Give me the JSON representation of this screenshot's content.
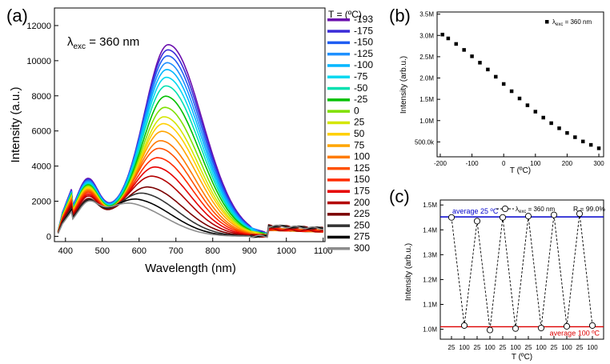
{
  "chart_data": [
    {
      "panel_label": "(a)",
      "type": "line",
      "title": "",
      "xlabel": "Wavelength (nm)",
      "ylabel": "Intensity (a.u.)",
      "xlim": [
        370,
        1105
      ],
      "ylim": [
        -300,
        13000
      ],
      "x_ticks": [
        400,
        500,
        600,
        700,
        800,
        900,
        1000,
        1100
      ],
      "y_ticks": [
        0,
        2000,
        4000,
        6000,
        8000,
        10000,
        12000
      ],
      "annotation_prefix": "λ",
      "annotation_sub": "exc",
      "annotation_suffix": " = 360 nm",
      "legend_title": "T = (ºC)",
      "series": [
        {
          "name": "-193",
          "color": "#6a0dad",
          "peak_x": 680,
          "peak_y": 11100,
          "shoulder_y": 3050
        },
        {
          "name": "-175",
          "color": "#3a2bd8",
          "peak_x": 679,
          "peak_y": 10800,
          "shoulder_y": 3000
        },
        {
          "name": "-150",
          "color": "#1f5df2",
          "peak_x": 678,
          "peak_y": 10450,
          "shoulder_y": 2950
        },
        {
          "name": "-125",
          "color": "#1e90ff",
          "peak_x": 677,
          "peak_y": 10050,
          "shoulder_y": 2900
        },
        {
          "name": "-100",
          "color": "#00b6ff",
          "peak_x": 676,
          "peak_y": 9650,
          "shoulder_y": 2850
        },
        {
          "name": "-75",
          "color": "#00d8f0",
          "peak_x": 675,
          "peak_y": 9200,
          "shoulder_y": 2800
        },
        {
          "name": "-50",
          "color": "#00e0b0",
          "peak_x": 674,
          "peak_y": 8700,
          "shoulder_y": 2750
        },
        {
          "name": "-25",
          "color": "#00c000",
          "peak_x": 673,
          "peak_y": 8100,
          "shoulder_y": 2700
        },
        {
          "name": "0",
          "color": "#7fe000",
          "peak_x": 671,
          "peak_y": 7450,
          "shoulder_y": 2650
        },
        {
          "name": "25",
          "color": "#d4e600",
          "peak_x": 669,
          "peak_y": 6900,
          "shoulder_y": 2580
        },
        {
          "name": "50",
          "color": "#ffd000",
          "peak_x": 667,
          "peak_y": 6500,
          "shoulder_y": 2520
        },
        {
          "name": "75",
          "color": "#ffa500",
          "peak_x": 664,
          "peak_y": 6050,
          "shoulder_y": 2460
        },
        {
          "name": "100",
          "color": "#ff7a00",
          "peak_x": 660,
          "peak_y": 5500,
          "shoulder_y": 2400
        },
        {
          "name": "125",
          "color": "#ff5000",
          "peak_x": 656,
          "peak_y": 5050,
          "shoulder_y": 2330
        },
        {
          "name": "150",
          "color": "#ff2a00",
          "peak_x": 652,
          "peak_y": 4500,
          "shoulder_y": 2250
        },
        {
          "name": "175",
          "color": "#e60000",
          "peak_x": 646,
          "peak_y": 3950,
          "shoulder_y": 2150
        },
        {
          "name": "200",
          "color": "#b30000",
          "peak_x": 638,
          "peak_y": 3400,
          "shoulder_y": 2050
        },
        {
          "name": "225",
          "color": "#7a0000",
          "peak_x": 628,
          "peak_y": 2750,
          "shoulder_y": 1900
        },
        {
          "name": "250",
          "color": "#333333",
          "peak_x": 614,
          "peak_y": 2350,
          "shoulder_y": 1800
        },
        {
          "name": "275",
          "color": "#000000",
          "peak_x": 600,
          "peak_y": 1950,
          "shoulder_y": 1700
        },
        {
          "name": "300",
          "color": "#8c8c8c",
          "peak_x": 585,
          "peak_y": 1650,
          "shoulder_y": 1600
        }
      ]
    },
    {
      "panel_label": "(b)",
      "type": "scatter",
      "title": "",
      "xlabel": "T (ºC)",
      "ylabel": "Intensity (arb.u.)",
      "xlim": [
        -210,
        315
      ],
      "ylim": [
        150000,
        3550000
      ],
      "x_ticks": [
        "-200",
        "-100",
        "0",
        "100",
        "200",
        "300"
      ],
      "x_tick_values": [
        -200,
        -100,
        0,
        100,
        200,
        300
      ],
      "y_ticks": [
        "500.0k",
        "1.0M",
        "1.5M",
        "2.0M",
        "2.5M",
        "3.0M",
        "3.5M"
      ],
      "y_tick_values": [
        500000,
        1000000,
        1500000,
        2000000,
        2500000,
        3000000,
        3500000
      ],
      "legend_prefix": "λ",
      "legend_sub": "exc",
      "legend_suffix": " = 360 nm",
      "x": [
        -193,
        -175,
        -150,
        -125,
        -100,
        -75,
        -50,
        -25,
        0,
        25,
        50,
        75,
        100,
        125,
        150,
        175,
        200,
        225,
        250,
        275,
        300
      ],
      "y": [
        3020000,
        2930000,
        2800000,
        2660000,
        2510000,
        2360000,
        2200000,
        2030000,
        1860000,
        1690000,
        1520000,
        1360000,
        1210000,
        1070000,
        940000,
        820000,
        710000,
        610000,
        510000,
        430000,
        350000
      ]
    },
    {
      "panel_label": "(c)",
      "type": "line",
      "title": "",
      "xlabel": "T (ºC)",
      "ylabel": "Intensity (arb.u.)",
      "ylim": [
        0.96,
        1.52
      ],
      "y_ticks": [
        "1.0M",
        "1.1M",
        "1.2M",
        "1.3M",
        "1.4M",
        "1.5M"
      ],
      "y_tick_values": [
        1.0,
        1.1,
        1.2,
        1.3,
        1.4,
        1.5
      ],
      "categories": [
        "25",
        "100",
        "25",
        "100",
        "25",
        "100",
        "25",
        "100",
        "25",
        "100",
        "25",
        "100"
      ],
      "values": [
        1.45,
        1.015,
        1.435,
        0.997,
        1.45,
        1.003,
        1.455,
        1.005,
        1.46,
        1.012,
        1.465,
        1.015
      ],
      "legend_prefix": "λ",
      "legend_sub": "exc",
      "legend_suffix": " = 360 nm",
      "r_label": "R = 99.0%",
      "ref_lines": [
        {
          "label": "average 25 ºC",
          "value": 1.452,
          "color": "#0000cc"
        },
        {
          "label": "average 100 ºC",
          "value": 1.01,
          "color": "#dd0000"
        }
      ]
    }
  ]
}
